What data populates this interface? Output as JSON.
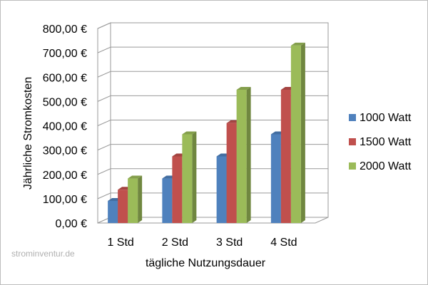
{
  "chart_data": {
    "type": "bar",
    "categories": [
      "1  Std",
      "2 Std",
      "3 Std",
      "4 Std"
    ],
    "series": [
      {
        "name": "1000 Watt",
        "values": [
          91,
          183,
          274,
          365
        ],
        "color": "#4F81BD"
      },
      {
        "name": "1500 Watt",
        "values": [
          137,
          274,
          411,
          548
        ],
        "color": "#C0504D"
      },
      {
        "name": "2000 Watt",
        "values": [
          183,
          365,
          548,
          730
        ],
        "color": "#9BBB59"
      }
    ],
    "y_ticks": [
      "0,00 €",
      "100,00 €",
      "200,00 €",
      "300,00 €",
      "400,00 €",
      "500,00 €",
      "600,00 €",
      "700,00 €",
      "800,00 €"
    ],
    "xlabel": "tägliche Nutzungsdauer",
    "ylabel": "Jährliche Stromkosten",
    "ylim": [
      0,
      800
    ],
    "grid": true,
    "legend_position": "right",
    "style": "3d-clustered-column"
  },
  "watermark": "strominventur.de"
}
